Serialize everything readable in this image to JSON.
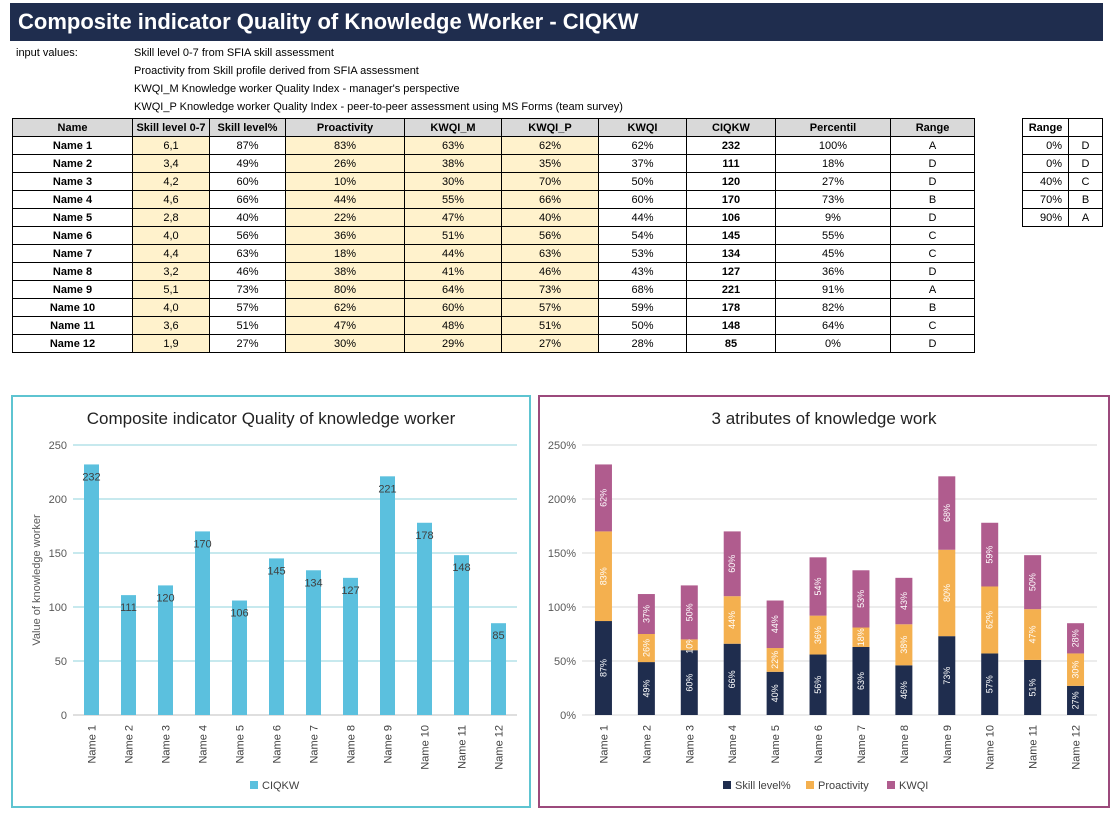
{
  "title": "Composite indicator Quality of Knowledge Worker - CIQKW",
  "inputs": {
    "label": "input values:",
    "lines": [
      "Skill level 0-7 from SFIA skill assessment",
      "Proactivity from Skill profile derived from SFIA assessment",
      "KWQI_M Knowledge worker Quality Index - manager's perspective",
      "KWQI_P Knowledge worker Quality Index - peer-to-peer assessment using MS Forms (team survey)"
    ]
  },
  "table": {
    "headers": [
      "Name",
      "Skill level 0-7",
      "Skill level%",
      "Proactivity",
      "KWQI_M",
      "KWQI_P",
      "KWQI",
      "CIQKW",
      "Percentil",
      "Range"
    ],
    "rows": [
      [
        "Name 1",
        "6,1",
        "87%",
        "83%",
        "63%",
        "62%",
        "62%",
        "232",
        "100%",
        "A"
      ],
      [
        "Name 2",
        "3,4",
        "49%",
        "26%",
        "38%",
        "35%",
        "37%",
        "111",
        "18%",
        "D"
      ],
      [
        "Name 3",
        "4,2",
        "60%",
        "10%",
        "30%",
        "70%",
        "50%",
        "120",
        "27%",
        "D"
      ],
      [
        "Name 4",
        "4,6",
        "66%",
        "44%",
        "55%",
        "66%",
        "60%",
        "170",
        "73%",
        "B"
      ],
      [
        "Name 5",
        "2,8",
        "40%",
        "22%",
        "47%",
        "40%",
        "44%",
        "106",
        "9%",
        "D"
      ],
      [
        "Name 6",
        "4,0",
        "56%",
        "36%",
        "51%",
        "56%",
        "54%",
        "145",
        "55%",
        "C"
      ],
      [
        "Name 7",
        "4,4",
        "63%",
        "18%",
        "44%",
        "63%",
        "53%",
        "134",
        "45%",
        "C"
      ],
      [
        "Name 8",
        "3,2",
        "46%",
        "38%",
        "41%",
        "46%",
        "43%",
        "127",
        "36%",
        "D"
      ],
      [
        "Name 9",
        "5,1",
        "73%",
        "80%",
        "64%",
        "73%",
        "68%",
        "221",
        "91%",
        "A"
      ],
      [
        "Name 10",
        "4,0",
        "57%",
        "62%",
        "60%",
        "57%",
        "59%",
        "178",
        "82%",
        "B"
      ],
      [
        "Name 11",
        "3,6",
        "51%",
        "47%",
        "48%",
        "51%",
        "50%",
        "148",
        "64%",
        "C"
      ],
      [
        "Name 12",
        "1,9",
        "27%",
        "30%",
        "29%",
        "27%",
        "28%",
        "85",
        "0%",
        "D"
      ]
    ]
  },
  "range_table": {
    "header": "Range",
    "rows": [
      [
        "0%",
        "D"
      ],
      [
        "0%",
        "D"
      ],
      [
        "40%",
        "C"
      ],
      [
        "70%",
        "B"
      ],
      [
        "90%",
        "A"
      ]
    ]
  },
  "colors": {
    "banner": "#1f2d4e",
    "header_fill": "#d9d9d9",
    "input_fill": "#fff2cc",
    "ciqkw_bar": "#5bc0de",
    "skill": "#1f2d4e",
    "proactivity": "#f4b04f",
    "kwqi": "#b05c8e",
    "chart1_border": "#5ec4d1",
    "chart2_border": "#9c4a7c"
  },
  "chart_data": [
    {
      "type": "bar",
      "title": "Composite indicator Quality of knowledge worker",
      "ylabel": "Value of knowledge worker",
      "xlabel": "",
      "ylim": [
        0,
        250
      ],
      "yticks": [
        "0",
        "50",
        "100",
        "150",
        "200",
        "250"
      ],
      "grid": true,
      "legend_position": "bottom",
      "categories": [
        "Name 1",
        "Name 2",
        "Name 3",
        "Name 4",
        "Name 5",
        "Name 6",
        "Name 7",
        "Name 8",
        "Name 9",
        "Name 10",
        "Name 11",
        "Name 12"
      ],
      "series": [
        {
          "name": "CIQKW",
          "values": [
            232,
            111,
            120,
            170,
            106,
            145,
            134,
            127,
            221,
            178,
            148,
            85
          ]
        }
      ]
    },
    {
      "type": "bar",
      "stacked": true,
      "title": "3 atributes of knowledge work",
      "xlabel": "",
      "ylabel": "",
      "ylim": [
        0,
        250
      ],
      "yticks": [
        "0%",
        "50%",
        "100%",
        "150%",
        "200%",
        "250%"
      ],
      "grid": true,
      "legend_position": "bottom",
      "categories": [
        "Name 1",
        "Name 2",
        "Name 3",
        "Name 4",
        "Name 5",
        "Name 6",
        "Name 7",
        "Name 8",
        "Name 9",
        "Name 10",
        "Name 11",
        "Name 12"
      ],
      "series": [
        {
          "name": "Skill level%",
          "values": [
            87,
            49,
            60,
            66,
            40,
            56,
            63,
            46,
            73,
            57,
            51,
            27
          ],
          "labels": [
            "87%",
            "49%",
            "60%",
            "66%",
            "40%",
            "56%",
            "63%",
            "46%",
            "73%",
            "57%",
            "51%",
            "27%"
          ]
        },
        {
          "name": "Proactivity",
          "values": [
            83,
            26,
            10,
            44,
            22,
            36,
            18,
            38,
            80,
            62,
            47,
            30
          ],
          "labels": [
            "83%",
            "26%",
            "10%",
            "44%",
            "22%",
            "36%",
            "18%",
            "38%",
            "80%",
            "62%",
            "47%",
            "30%"
          ]
        },
        {
          "name": "KWQI",
          "values": [
            62,
            37,
            50,
            60,
            44,
            54,
            53,
            43,
            68,
            59,
            50,
            28
          ],
          "labels": [
            "62%",
            "37%",
            "50%",
            "60%",
            "44%",
            "54%",
            "53%",
            "43%",
            "68%",
            "59%",
            "50%",
            "28%"
          ]
        }
      ]
    }
  ]
}
